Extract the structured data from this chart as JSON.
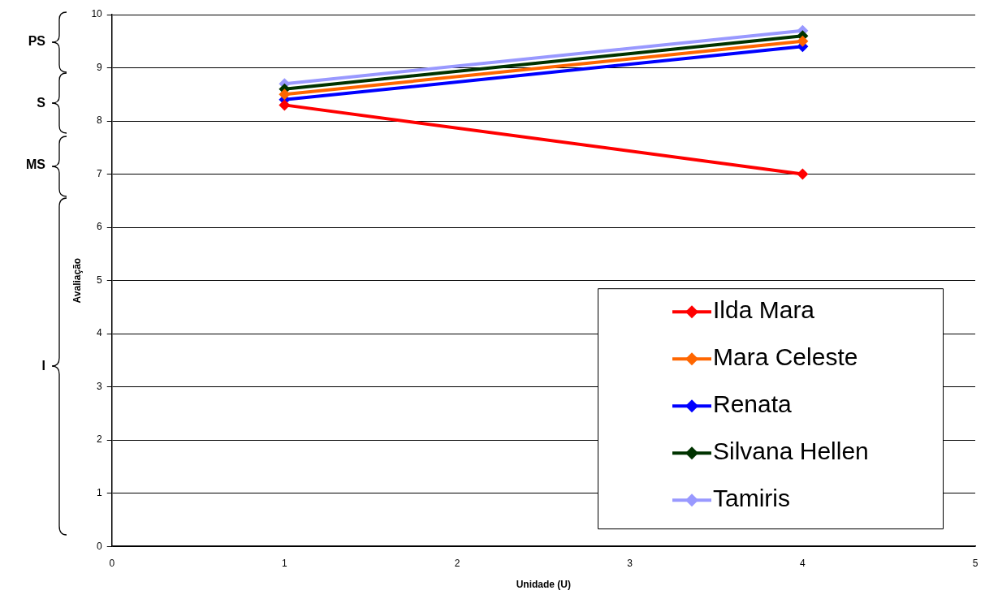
{
  "chart_data": {
    "type": "line",
    "xlabel": "Unidade (U)",
    "ylabel": "Avaliação",
    "x": [
      1,
      4
    ],
    "series": [
      {
        "name": "Ilda Mara",
        "color": "#ff0000",
        "values": [
          8.3,
          7.0
        ]
      },
      {
        "name": "Mara Celeste",
        "color": "#ff6600",
        "values": [
          8.5,
          9.5
        ]
      },
      {
        "name": "Renata",
        "color": "#0000ff",
        "values": [
          8.4,
          9.4
        ]
      },
      {
        "name": "Silvana Hellen",
        "color": "#003300",
        "values": [
          8.6,
          9.6
        ]
      },
      {
        "name": "Tamiris",
        "color": "#9999ff",
        "values": [
          8.7,
          9.7
        ]
      }
    ],
    "xlim": [
      0,
      5
    ],
    "xticks": [
      0,
      1,
      2,
      3,
      4,
      5
    ],
    "ylim": [
      0,
      10
    ],
    "yticks": [
      0,
      1,
      2,
      3,
      4,
      5,
      6,
      7,
      8,
      9,
      10
    ],
    "annotations": [
      "PS",
      "S",
      "MS",
      "I"
    ],
    "grid": "y",
    "legend": "bottom right",
    "marker": "diamond",
    "line_style": "solid"
  }
}
